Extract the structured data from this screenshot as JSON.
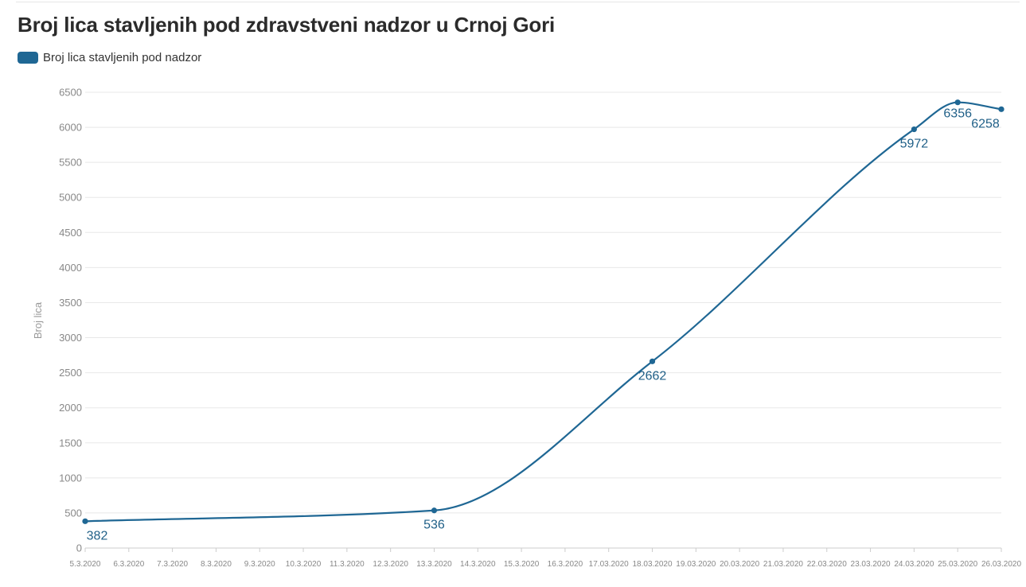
{
  "title": "Broj lica stavljenih pod zdravstveni nadzor u Crnoj Gori",
  "legend": {
    "label": "Broj lica stavljenih pod nadzor"
  },
  "colors": {
    "series": "#1f6794",
    "grid": "#e8e8e8",
    "tick": "#888888",
    "label": "#1f5f87"
  },
  "chart_data": {
    "type": "line",
    "title": "Broj lica stavljenih pod zdravstveni nadzor u Crnoj Gori",
    "xlabel": "",
    "ylabel": "Broj lica",
    "ylim": [
      0,
      6500
    ],
    "yticks": [
      0,
      500,
      1000,
      1500,
      2000,
      2500,
      3000,
      3500,
      4000,
      4500,
      5000,
      5500,
      6000,
      6500
    ],
    "categories": [
      "5.3.2020",
      "6.3.2020",
      "7.3.2020",
      "8.3.2020",
      "9.3.2020",
      "10.3.2020",
      "11.3.2020",
      "12.3.2020",
      "13.3.2020",
      "14.3.2020",
      "15.3.2020",
      "16.3.2020",
      "17.03.2020",
      "18.03.2020",
      "19.03.2020",
      "20.03.2020",
      "21.03.2020",
      "22.03.2020",
      "23.03.2020",
      "24.03.2020",
      "25.03.2020",
      "26.03.2020"
    ],
    "grid": true,
    "legend_position": "top-left",
    "series": [
      {
        "name": "Broj lica stavljenih pod nadzor",
        "points": [
          {
            "x": "5.3.2020",
            "y": 382
          },
          {
            "x": "13.3.2020",
            "y": 536
          },
          {
            "x": "18.03.2020",
            "y": 2662
          },
          {
            "x": "24.03.2020",
            "y": 5972
          },
          {
            "x": "25.03.2020",
            "y": 6356
          },
          {
            "x": "26.03.2020",
            "y": 6258
          }
        ]
      }
    ]
  }
}
